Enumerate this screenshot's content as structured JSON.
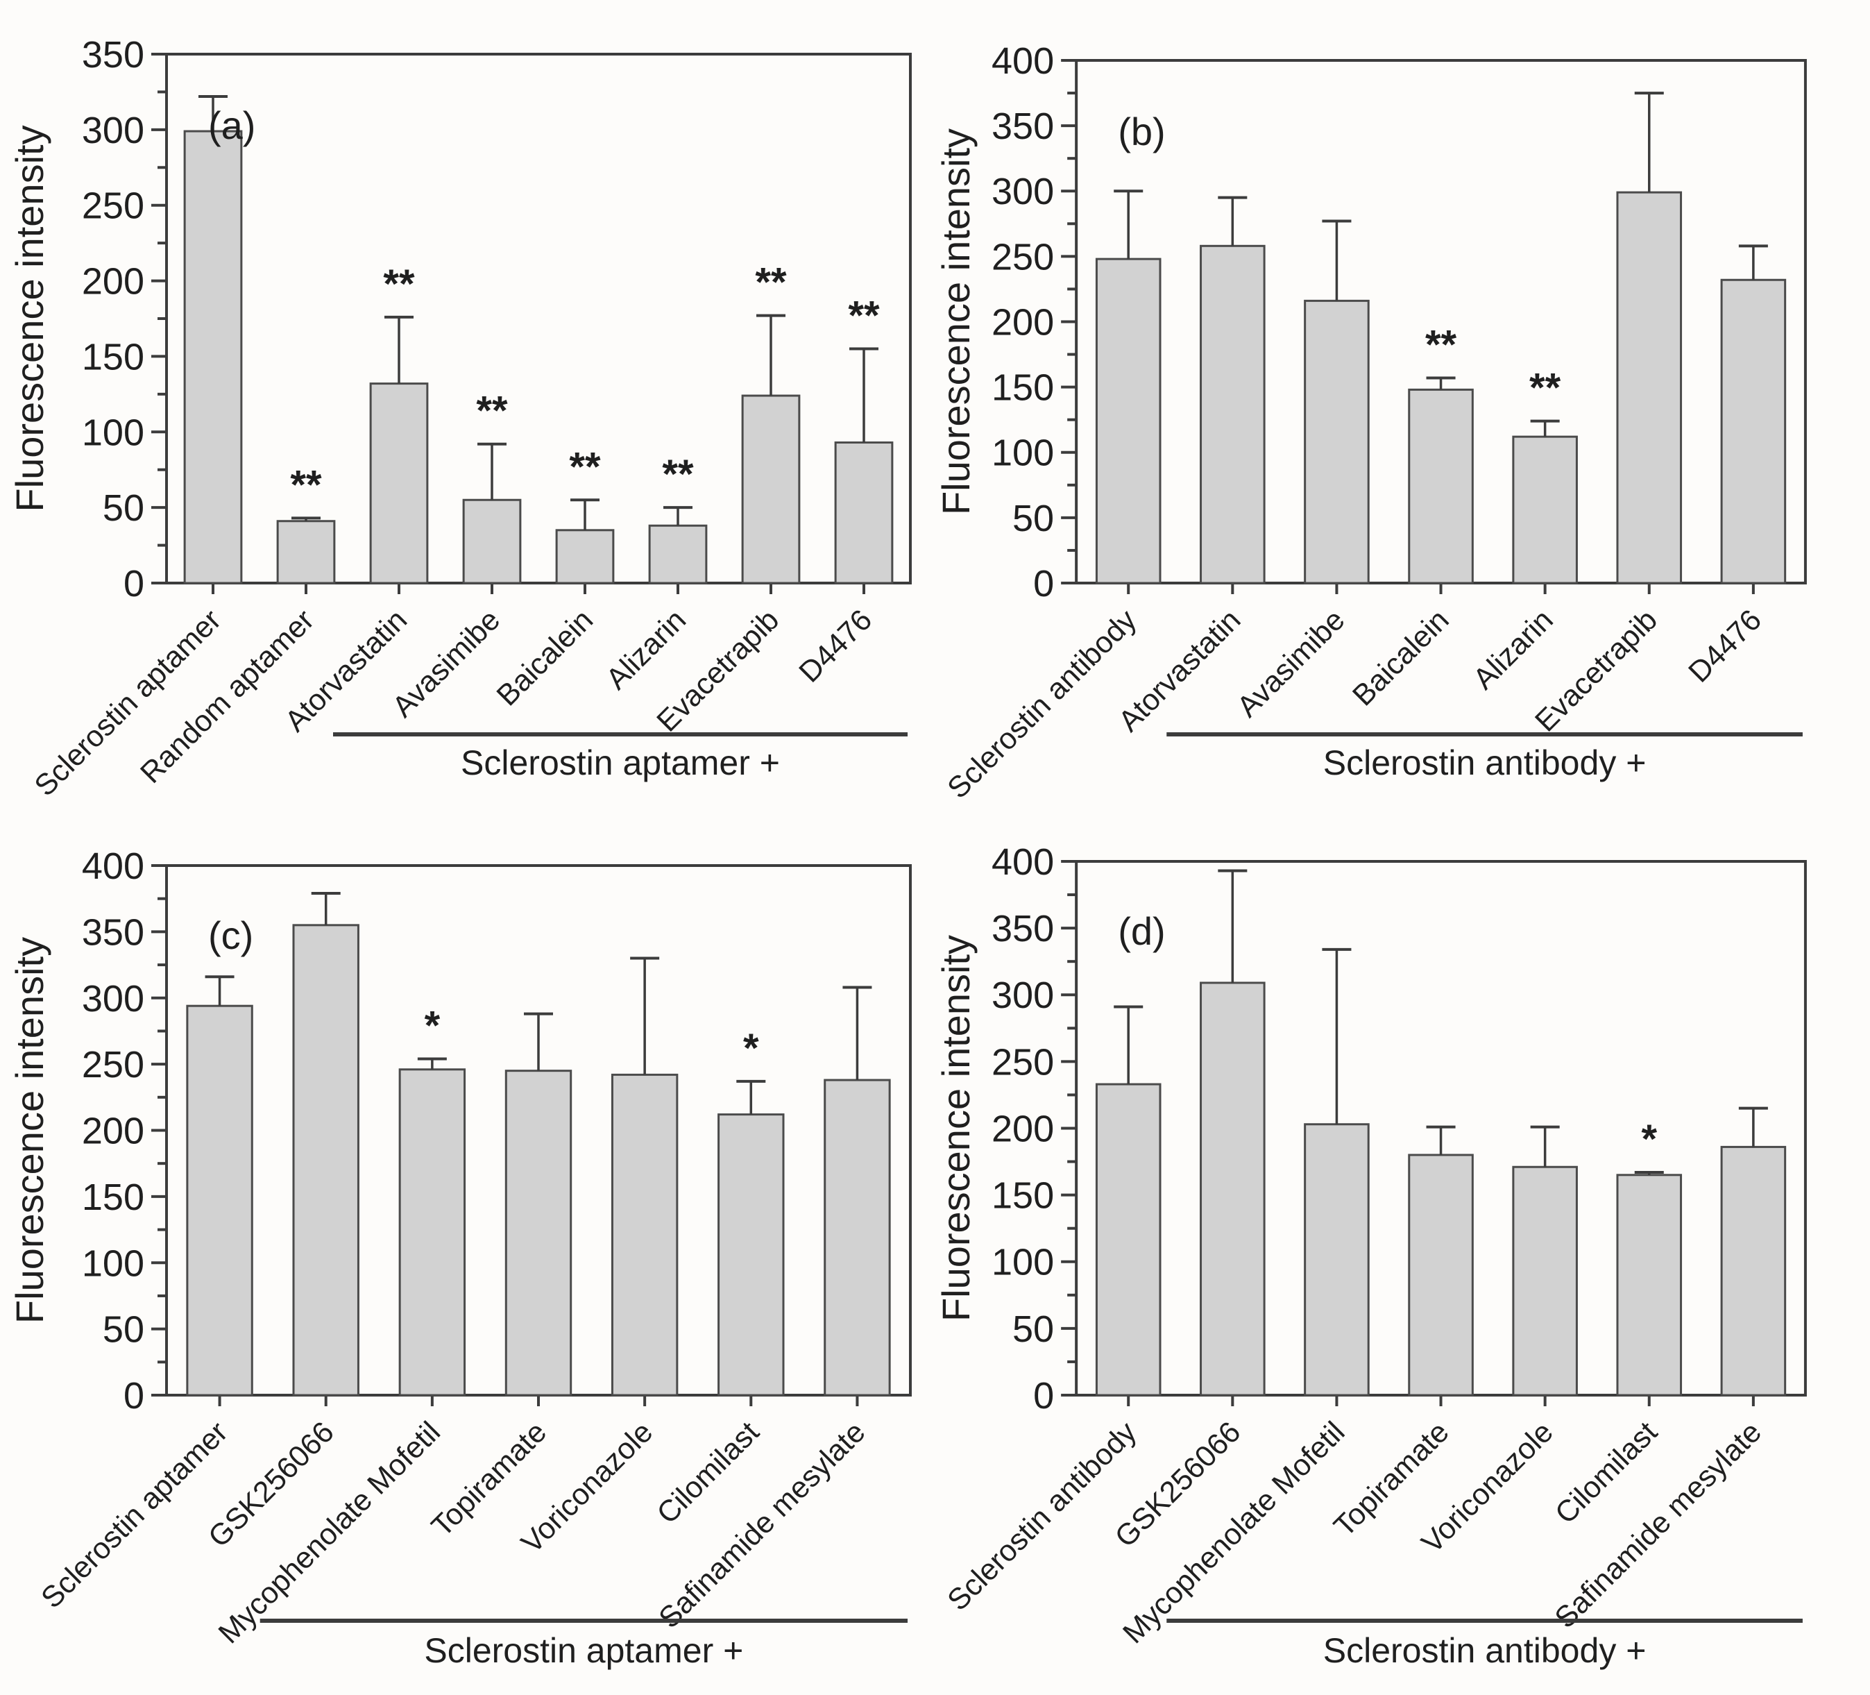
{
  "styles": {
    "background": "#fdfcfa",
    "bar_fill": "#d2d2d2",
    "bar_stroke": "#4b4b4b",
    "axis_color": "#3c3c3c",
    "error_color": "#3c3c3c",
    "text_color": "#1f1f1f"
  },
  "chart_data": [
    {
      "id": "a",
      "type": "bar",
      "panel_label": "(a)",
      "title": "",
      "xlabel": "",
      "ylabel": "Fluorescence intensity",
      "ylim": [
        0,
        350
      ],
      "ytick_major": 50,
      "ytick_minor": 25,
      "grid": false,
      "legend": "none",
      "categories": [
        "Sclerostin aptamer",
        "Random aptamer",
        "Atorvastatin",
        "Avasimibe",
        "Baicalein",
        "Alizarin",
        "Evacetrapib",
        "D4476"
      ],
      "values": [
        299,
        41,
        132,
        55,
        35,
        38,
        124,
        93
      ],
      "errors_upper": [
        23,
        2,
        44,
        37,
        20,
        12,
        53,
        62
      ],
      "significance": [
        "",
        "**",
        "**",
        "**",
        "**",
        "**",
        "**",
        "**"
      ],
      "group_label": "Sclerostin aptamer +",
      "group_start_index": 2
    },
    {
      "id": "b",
      "type": "bar",
      "panel_label": "(b)",
      "title": "",
      "xlabel": "",
      "ylabel": "Fluorescence intensity",
      "ylim": [
        0,
        400
      ],
      "ytick_major": 50,
      "ytick_minor": 25,
      "grid": false,
      "legend": "none",
      "categories": [
        "Sclerostin antibody",
        "Atorvastatin",
        "Avasimibe",
        "Baicalein",
        "Alizarin",
        "Evacetrapib",
        "D4476"
      ],
      "values": [
        248,
        258,
        216,
        148,
        112,
        299,
        232
      ],
      "errors_upper": [
        52,
        37,
        61,
        9,
        12,
        76,
        26
      ],
      "significance": [
        "",
        "",
        "",
        "**",
        "**",
        "",
        ""
      ],
      "group_label": "Sclerostin antibody +",
      "group_start_index": 1
    },
    {
      "id": "c",
      "type": "bar",
      "panel_label": "(c)",
      "title": "",
      "xlabel": "",
      "ylabel": "Fluorescence intensity",
      "ylim": [
        0,
        400
      ],
      "ytick_major": 50,
      "ytick_minor": 25,
      "grid": false,
      "legend": "none",
      "categories": [
        "Sclerostin aptamer",
        "GSK256066",
        "Mycophenolate Mofetil",
        "Topiramate",
        "Voriconazole",
        "Cilomilast",
        "Safinamide mesylate"
      ],
      "values": [
        294,
        355,
        246,
        245,
        242,
        212,
        238
      ],
      "errors_upper": [
        22,
        24,
        8,
        43,
        88,
        25,
        70
      ],
      "significance": [
        "",
        "",
        "*",
        "",
        "",
        "*",
        ""
      ],
      "group_label": "Sclerostin aptamer +",
      "group_start_index": 1
    },
    {
      "id": "d",
      "type": "bar",
      "panel_label": "(d)",
      "title": "",
      "xlabel": "",
      "ylabel": "Fluorescence intensity",
      "ylim": [
        0,
        400
      ],
      "ytick_major": 50,
      "ytick_minor": 25,
      "grid": false,
      "legend": "none",
      "categories": [
        "Sclerostin antibody",
        "GSK256066",
        "Mycophenolate Mofetil",
        "Topiramate",
        "Voriconazole",
        "Cilomilast",
        "Safinamide mesylate"
      ],
      "values": [
        233,
        309,
        203,
        180,
        171,
        165,
        186
      ],
      "errors_upper": [
        58,
        84,
        131,
        21,
        30,
        2,
        29
      ],
      "significance": [
        "",
        "",
        "",
        "",
        "",
        "*",
        ""
      ],
      "group_label": "Sclerostin antibody +",
      "group_start_index": 1
    }
  ]
}
